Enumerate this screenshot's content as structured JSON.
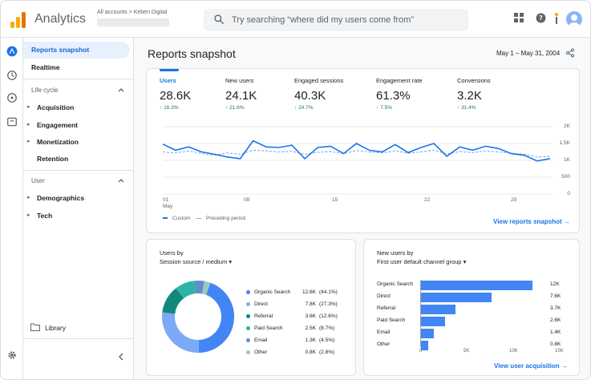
{
  "app": {
    "title": "Analytics",
    "breadcrumb": "All accounts > Keben Digital",
    "search_placeholder": "Try searching “where did my users come from”",
    "colors": {
      "accent": "#1a73e8",
      "brand": "#f9ab00",
      "positive": "#188038"
    }
  },
  "nav": {
    "reports_snapshot": "Reports snapshot",
    "realtime": "Realtime",
    "lifecycle_header": "Life cycle",
    "acquisition": "Acquisition",
    "engagement": "Engagement",
    "monetization": "Monetization",
    "retention": "Retention",
    "user_header": "User",
    "demographics": "Demographics",
    "tech": "Tech",
    "library": "Library"
  },
  "header": {
    "page_title": "Reports snapshot",
    "date_range": "May 1 – May 31, 2004"
  },
  "metrics": [
    {
      "label": "Users",
      "value": "28.6K",
      "delta": "18.3%"
    },
    {
      "label": "New users",
      "value": "24.1K",
      "delta": "21.6%"
    },
    {
      "label": "Engaged sessions",
      "value": "40.3K",
      "delta": "24.7%"
    },
    {
      "label": "Engagement rate",
      "value": "61.3%",
      "delta": "7.5%"
    },
    {
      "label": "Conversions",
      "value": "3.2K",
      "delta": "31.4%"
    }
  ],
  "trend": {
    "y_ticks": [
      "2K",
      "1.5K",
      "1K",
      "500",
      "0"
    ],
    "x_ticks": [
      "01",
      "08",
      "15",
      "22",
      "29"
    ],
    "x_month": "May",
    "legend_custom": "Custom",
    "legend_preceding": "Preceding period",
    "link": "View reports snapshot"
  },
  "pie_card": {
    "title": "Users by",
    "subtitle": "Session source / medium",
    "items": [
      {
        "name": "Organic Search",
        "value": "12.6K",
        "pct": "(44.1%)",
        "color": "#4285f4"
      },
      {
        "name": "Direct",
        "value": "7.8K",
        "pct": "(27.3%)",
        "color": "#7baaf7"
      },
      {
        "name": "Referral",
        "value": "3.6K",
        "pct": "(12.6%)",
        "color": "#12877f"
      },
      {
        "name": "Paid Search",
        "value": "2.5K",
        "pct": "(8.7%)",
        "color": "#2eb4a4"
      },
      {
        "name": "Email",
        "value": "1.3K",
        "pct": "(4.5%)",
        "color": "#5f8fc9"
      },
      {
        "name": "Other",
        "value": "0.8K",
        "pct": "(2.8%)",
        "color": "#9bc7bf"
      }
    ]
  },
  "bar_card": {
    "title": "New users by",
    "subtitle": "First user default channel group",
    "x_ticks": [
      "0",
      "5K",
      "10K",
      "15K"
    ],
    "link": "View user acquisition",
    "items": [
      {
        "name": "Organic Search",
        "value": "12K"
      },
      {
        "name": "Direct",
        "value": "7.6K"
      },
      {
        "name": "Referral",
        "value": "3.7K"
      },
      {
        "name": "Paid Search",
        "value": "2.6K"
      },
      {
        "name": "Email",
        "value": "1.4K"
      },
      {
        "name": "Other",
        "value": "0.8K"
      }
    ]
  },
  "chart_data": [
    {
      "type": "line",
      "x": [
        "May 1",
        "May 2",
        "May 3",
        "May 4",
        "May 5",
        "May 6",
        "May 7",
        "May 8",
        "May 9",
        "May 10",
        "May 11",
        "May 12",
        "May 13",
        "May 14",
        "May 15",
        "May 16",
        "May 17",
        "May 18",
        "May 19",
        "May 20",
        "May 21",
        "May 22",
        "May 23",
        "May 24",
        "May 25",
        "May 26",
        "May 27",
        "May 28",
        "May 29",
        "May 30",
        "May 31"
      ],
      "series": [
        {
          "name": "Custom",
          "values": [
            1480,
            1300,
            1400,
            1250,
            1180,
            1100,
            1050,
            1580,
            1400,
            1380,
            1450,
            1050,
            1380,
            1420,
            1200,
            1500,
            1300,
            1250,
            1470,
            1230,
            1380,
            1500,
            1120,
            1400,
            1300,
            1420,
            1350,
            1200,
            1150,
            980,
            1050
          ]
        },
        {
          "name": "Preceding period",
          "values": [
            1250,
            1220,
            1280,
            1200,
            1150,
            1220,
            1180,
            1300,
            1280,
            1250,
            1270,
            1180,
            1240,
            1260,
            1200,
            1290,
            1250,
            1220,
            1280,
            1210,
            1250,
            1300,
            1190,
            1260,
            1230,
            1280,
            1250,
            1210,
            1180,
            1100,
            1120
          ]
        }
      ],
      "ylim": [
        0,
        2000
      ],
      "y_ticks": [
        "0",
        "500",
        "1K",
        "1.5K",
        "2K"
      ],
      "x_ticks": [
        "01",
        "08",
        "15",
        "22",
        "29"
      ]
    },
    {
      "type": "pie",
      "categories": [
        "Organic Search",
        "Direct",
        "Referral",
        "Paid Search",
        "Email",
        "Other"
      ],
      "values": [
        12.6,
        7.8,
        3.6,
        2.5,
        1.3,
        0.8
      ],
      "unit": "K"
    },
    {
      "type": "bar",
      "orientation": "horizontal",
      "categories": [
        "Organic Search",
        "Direct",
        "Referral",
        "Paid Search",
        "Email",
        "Other"
      ],
      "values": [
        12,
        7.6,
        3.7,
        2.6,
        1.4,
        0.8
      ],
      "unit": "K",
      "xlim": [
        0,
        15
      ]
    }
  ]
}
